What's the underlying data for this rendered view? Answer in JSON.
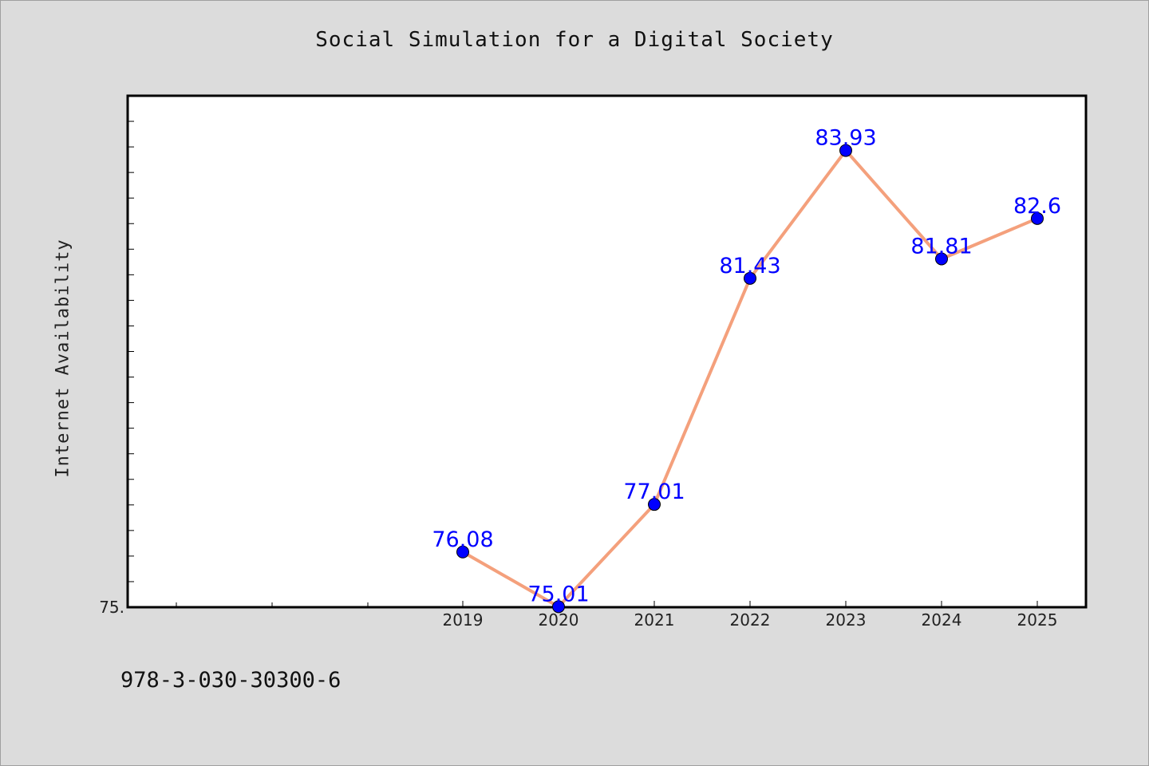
{
  "chart_data": {
    "type": "line",
    "title": "Social Simulation for a Digital Society",
    "xlabel": "",
    "ylabel": "Internet Availability",
    "categories": [
      "2019",
      "2020",
      "2021",
      "2022",
      "2023",
      "2024",
      "2025"
    ],
    "series": [
      {
        "values": [
          76.08,
          75.01,
          77.01,
          81.43,
          83.93,
          81.81,
          82.6
        ]
      }
    ],
    "data_labels": [
      "76.08",
      "75.01",
      "77.01",
      "81.43",
      "83.93",
      "81.81",
      "82.6"
    ],
    "y_tick_label": "75.",
    "ylim": [
      75.0,
      85.0
    ],
    "grid": false,
    "colors": {
      "line": "#f4a07c",
      "marker": "#0000ff",
      "label": "#0000ff",
      "plot_bg": "#ffffff",
      "page_bg": "#dcdcdc"
    }
  },
  "footer": {
    "isbn": "978-3-030-30300-6"
  }
}
